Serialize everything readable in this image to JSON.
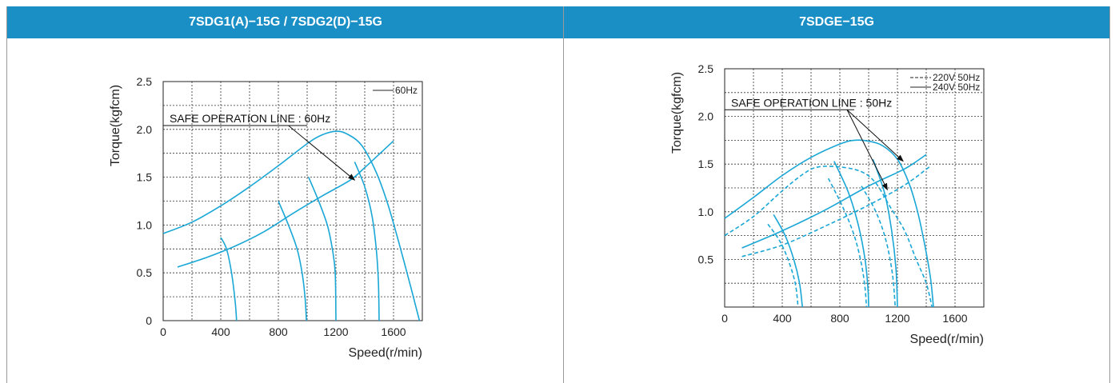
{
  "panels": [
    {
      "title": "7SDG1(A)−15G / 7SDG2(D)−15G"
    },
    {
      "title": "7SDGE−15G"
    }
  ],
  "colors": {
    "header": "#1a8fc6",
    "curve": "#1aa7d6",
    "grid": "#333333"
  },
  "chart_data": [
    {
      "type": "line",
      "xlabel": "Speed(r/min)",
      "ylabel": "Torque(kgfcm)",
      "xlim": [
        0,
        1800
      ],
      "ylim": [
        0,
        2.5
      ],
      "xticks": [
        0,
        400,
        800,
        1200,
        1600
      ],
      "xtick_labels": [
        "0",
        "400",
        "800",
        "1200",
        "1600"
      ],
      "yticks": [
        0,
        0.5,
        1.0,
        1.5,
        2.0,
        2.5
      ],
      "ytick_labels": [
        "0",
        "0.5",
        "1.0",
        "1.5",
        "2.0",
        "2.5"
      ],
      "x_grid_step": 200,
      "y_grid_step": 0.25,
      "legend": [
        {
          "label": "60Hz",
          "style": "solid"
        }
      ],
      "legend_position": "top-right",
      "annotation": {
        "text": "SAFE OPERATION LINE : 60Hz",
        "line": [
          [
            0,
            2.04
          ],
          [
            1000,
            2.04
          ]
        ],
        "arrow": [
          [
            870,
            2.04
          ],
          [
            1330,
            1.47
          ]
        ]
      },
      "series": [
        {
          "style": "solid",
          "points": [
            [
              0,
              0.91
            ],
            [
              200,
              1.03
            ],
            [
              400,
              1.2
            ],
            [
              600,
              1.4
            ],
            [
              800,
              1.62
            ],
            [
              1000,
              1.85
            ],
            [
              1100,
              1.94
            ],
            [
              1200,
              1.98
            ],
            [
              1280,
              1.95
            ],
            [
              1380,
              1.83
            ],
            [
              1480,
              1.55
            ],
            [
              1560,
              1.22
            ],
            [
              1640,
              0.8
            ],
            [
              1720,
              0.35
            ],
            [
              1780,
              0.0
            ]
          ]
        },
        {
          "style": "solid",
          "points": [
            [
              100,
              0.56
            ],
            [
              300,
              0.66
            ],
            [
              500,
              0.78
            ],
            [
              700,
              0.93
            ],
            [
              900,
              1.12
            ],
            [
              1100,
              1.3
            ],
            [
              1300,
              1.47
            ],
            [
              1400,
              1.6
            ],
            [
              1600,
              1.88
            ]
          ]
        },
        {
          "style": "solid",
          "points": [
            [
              400,
              0.87
            ],
            [
              440,
              0.75
            ],
            [
              475,
              0.5
            ],
            [
              500,
              0.2
            ],
            [
              510,
              0.0
            ]
          ]
        },
        {
          "style": "solid",
          "points": [
            [
              800,
              1.25
            ],
            [
              870,
              1.0
            ],
            [
              930,
              0.75
            ],
            [
              965,
              0.5
            ],
            [
              985,
              0.25
            ],
            [
              995,
              0.0
            ]
          ]
        },
        {
          "style": "solid",
          "points": [
            [
              1010,
              1.5
            ],
            [
              1080,
              1.25
            ],
            [
              1140,
              1.0
            ],
            [
              1175,
              0.75
            ],
            [
              1195,
              0.5
            ],
            [
              1200,
              0.0
            ]
          ]
        },
        {
          "style": "solid",
          "points": [
            [
              1330,
              1.66
            ],
            [
              1400,
              1.4
            ],
            [
              1450,
              1.1
            ],
            [
              1480,
              0.75
            ],
            [
              1495,
              0.4
            ],
            [
              1500,
              0.0
            ]
          ]
        }
      ]
    },
    {
      "type": "line",
      "xlabel": "Speed(r/min)",
      "ylabel": "Torque(kgfcm)",
      "xlim": [
        0,
        1800
      ],
      "ylim": [
        0,
        2.5
      ],
      "xticks": [
        0,
        400,
        800,
        1200,
        1600
      ],
      "xtick_labels": [
        "0",
        "400",
        "800",
        "1200",
        "1600"
      ],
      "yticks": [
        0.5,
        1.0,
        1.5,
        2.0,
        2.5
      ],
      "ytick_labels": [
        "0.5",
        "1.0",
        "1.5",
        "2.0",
        "2.5"
      ],
      "x_grid_step": 200,
      "y_grid_step": 0.25,
      "legend": [
        {
          "label": "220V 50Hz",
          "style": "dashed"
        },
        {
          "label": "240V 50Hz",
          "style": "solid"
        }
      ],
      "legend_position": "top-right",
      "annotation": {
        "text": "SAFE OPERATION LINE : 50Hz",
        "line": [
          [
            0,
            2.07
          ],
          [
            900,
            2.07
          ]
        ],
        "arrows": [
          [
            [
              850,
              2.07
            ],
            [
              1240,
              1.53
            ]
          ],
          [
            [
              850,
              2.07
            ],
            [
              1130,
              1.23
            ]
          ]
        ]
      },
      "series": [
        {
          "name": "240V 50Hz",
          "style": "solid",
          "points": [
            [
              0,
              0.93
            ],
            [
              200,
              1.15
            ],
            [
              400,
              1.38
            ],
            [
              600,
              1.57
            ],
            [
              800,
              1.71
            ],
            [
              900,
              1.75
            ],
            [
              1000,
              1.74
            ],
            [
              1100,
              1.69
            ],
            [
              1200,
              1.55
            ],
            [
              1280,
              1.3
            ],
            [
              1340,
              1.0
            ],
            [
              1390,
              0.65
            ],
            [
              1430,
              0.3
            ],
            [
              1450,
              0.0
            ]
          ]
        },
        {
          "name": "220V 50Hz",
          "style": "dashed",
          "points": [
            [
              0,
              0.75
            ],
            [
              200,
              0.95
            ],
            [
              400,
              1.22
            ],
            [
              550,
              1.4
            ],
            [
              650,
              1.47
            ],
            [
              800,
              1.47
            ],
            [
              950,
              1.42
            ],
            [
              1050,
              1.3
            ],
            [
              1150,
              1.05
            ],
            [
              1250,
              0.8
            ],
            [
              1330,
              0.5
            ],
            [
              1400,
              0.25
            ],
            [
              1440,
              0.0
            ]
          ]
        },
        {
          "style": "solid",
          "points": [
            [
              120,
              0.62
            ],
            [
              400,
              0.8
            ],
            [
              700,
              1.02
            ],
            [
              1000,
              1.27
            ],
            [
              1250,
              1.45
            ],
            [
              1400,
              1.6
            ]
          ]
        },
        {
          "style": "dashed",
          "points": [
            [
              120,
              0.53
            ],
            [
              400,
              0.65
            ],
            [
              700,
              0.85
            ],
            [
              1000,
              1.07
            ],
            [
              1250,
              1.28
            ],
            [
              1430,
              1.48
            ]
          ]
        },
        {
          "style": "solid",
          "points": [
            [
              340,
              0.97
            ],
            [
              420,
              0.75
            ],
            [
              480,
              0.5
            ],
            [
              520,
              0.25
            ],
            [
              540,
              0.0
            ]
          ]
        },
        {
          "style": "dashed",
          "points": [
            [
              300,
              0.87
            ],
            [
              380,
              0.7
            ],
            [
              440,
              0.5
            ],
            [
              490,
              0.25
            ],
            [
              510,
              0.0
            ]
          ]
        },
        {
          "style": "solid",
          "points": [
            [
              760,
              1.53
            ],
            [
              860,
              1.2
            ],
            [
              930,
              0.85
            ],
            [
              975,
              0.5
            ],
            [
              995,
              0.2
            ],
            [
              1000,
              0.0
            ]
          ]
        },
        {
          "style": "dashed",
          "points": [
            [
              720,
              1.35
            ],
            [
              820,
              1.05
            ],
            [
              900,
              0.75
            ],
            [
              950,
              0.45
            ],
            [
              975,
              0.2
            ],
            [
              985,
              0.0
            ]
          ]
        },
        {
          "style": "solid",
          "points": [
            [
              1030,
              1.55
            ],
            [
              1110,
              1.2
            ],
            [
              1160,
              0.8
            ],
            [
              1190,
              0.4
            ],
            [
              1200,
              0.0
            ]
          ]
        },
        {
          "style": "dashed",
          "points": [
            [
              950,
              1.27
            ],
            [
              1050,
              1.0
            ],
            [
              1120,
              0.7
            ],
            [
              1165,
              0.35
            ],
            [
              1185,
              0.0
            ]
          ]
        }
      ]
    }
  ]
}
